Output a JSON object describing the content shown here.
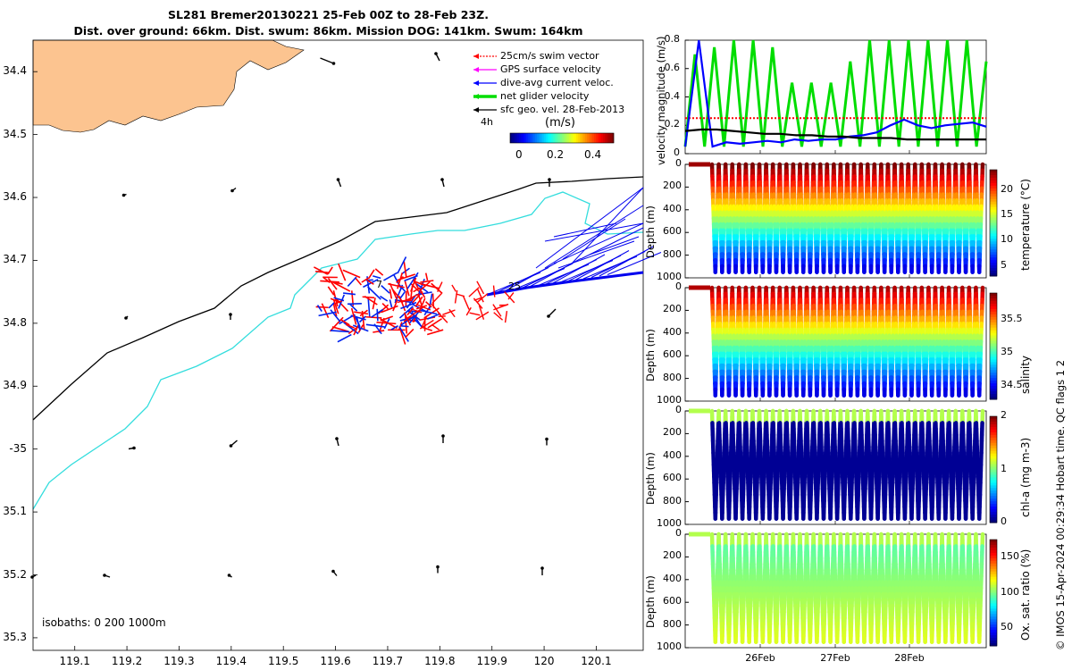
{
  "title": {
    "line1": "SL281 Bremer20130221 25-Feb 00Z to 28-Feb 23Z.",
    "line2": "Dist. over ground: 66km. Dist. swum: 86km. Mission DOG: 141km. Swum: 164km"
  },
  "map": {
    "lon_ticks": [
      "119.1",
      "119.2",
      "119.3",
      "119.4",
      "119.5",
      "119.6",
      "119.7",
      "119.8",
      "119.9",
      "120",
      "120.1"
    ],
    "lat_ticks": [
      "34.4",
      "34.5",
      "34.6",
      "34.7",
      "34.8",
      "34.9",
      "-35",
      "35.1",
      "35.2",
      "35.3"
    ],
    "legend": [
      {
        "label": "25cm/s swim vector",
        "color": "#ff0000"
      },
      {
        "label": "GPS surface velocity",
        "color": "#ff00ff"
      },
      {
        "label": "dive-avg current veloc.",
        "color": "#0000ff"
      },
      {
        "label": "net glider velocity",
        "color": "#00dd00"
      },
      {
        "label": "sfc geo. vel. 28-Feb-2013",
        "color": "#000000"
      }
    ],
    "legend_time": "4h",
    "colorbar_unit": "(m/s)",
    "colorbar_ticks": [
      "0",
      "0.2",
      "0.4"
    ],
    "isobaths_label": "isobaths: 0   200  1000m",
    "annotations": [
      "7",
      "25"
    ]
  },
  "chart_data": [
    {
      "type": "line",
      "title": "",
      "xlabel": "",
      "ylabel": "velocity magnitude (m/s)",
      "ylim": [
        0,
        0.8
      ],
      "yticks": [
        "0",
        "0.2",
        "0.4",
        "0.6",
        "0.8"
      ],
      "series": [
        {
          "name": "net glider velocity",
          "color": "#00dd00",
          "values": [
            0.05,
            0.7,
            0.05,
            0.75,
            0.05,
            0.8,
            0.05,
            0.8,
            0.05,
            0.75,
            0.05,
            0.5,
            0.05,
            0.5,
            0.05,
            0.5,
            0.05,
            0.65,
            0.05,
            0.8,
            0.05,
            0.8,
            0.05,
            0.8,
            0.05,
            0.8,
            0.05,
            0.8,
            0.05,
            0.8,
            0.05,
            0.65
          ]
        },
        {
          "name": "25cm/s swim vector",
          "color": "#ff0000",
          "values": [
            0.25,
            0.25,
            0.25,
            0.25,
            0.25,
            0.25,
            0.25,
            0.25,
            0.25,
            0.25,
            0.25,
            0.25,
            0.25,
            0.25,
            0.25,
            0.25,
            0.25,
            0.25,
            0.25,
            0.25
          ]
        },
        {
          "name": "dive-avg current veloc.",
          "color": "#0000ff",
          "values": [
            0.05,
            0.8,
            0.05,
            0.08,
            0.07,
            0.08,
            0.09,
            0.08,
            0.1,
            0.09,
            0.1,
            0.1,
            0.12,
            0.13,
            0.15,
            0.2,
            0.24,
            0.2,
            0.18,
            0.2,
            0.21,
            0.22,
            0.19
          ]
        },
        {
          "name": "sfc geo. vel.",
          "color": "#000000",
          "values": [
            0.16,
            0.17,
            0.17,
            0.16,
            0.15,
            0.14,
            0.14,
            0.13,
            0.13,
            0.12,
            0.12,
            0.11,
            0.11,
            0.11,
            0.1,
            0.1,
            0.1,
            0.1,
            0.1,
            0.1
          ]
        }
      ]
    },
    {
      "type": "scatter",
      "variable": "temperature (°C)",
      "ylabel": "Depth (m)",
      "yticks": [
        "0",
        "200",
        "400",
        "600",
        "800",
        "1000"
      ],
      "colorbar_ticks": [
        "5",
        "10",
        "15",
        "20"
      ],
      "clim": [
        3,
        24
      ],
      "profile_count": 40,
      "max_depth": 950
    },
    {
      "type": "scatter",
      "variable": "salinity",
      "ylabel": "Depth (m)",
      "yticks": [
        "0",
        "200",
        "400",
        "600",
        "800",
        "1000"
      ],
      "colorbar_ticks": [
        "34.5",
        "35",
        "35.5"
      ],
      "clim": [
        34.3,
        35.9
      ],
      "profile_count": 40,
      "max_depth": 950
    },
    {
      "type": "scatter",
      "variable": "chl-a (mg m-3)",
      "ylabel": "Depth (m)",
      "yticks": [
        "0",
        "200",
        "400",
        "600",
        "800",
        "1000"
      ],
      "colorbar_ticks": [
        "0",
        "1",
        "2"
      ],
      "clim": [
        0,
        2
      ],
      "profile_count": 40,
      "max_depth": 950
    },
    {
      "type": "scatter",
      "variable": "Ox. sat. ratio (%)",
      "ylabel": "Depth (m)",
      "yticks": [
        "0",
        "200",
        "400",
        "600",
        "800",
        "1000"
      ],
      "colorbar_ticks": [
        "50",
        "100",
        "150"
      ],
      "clim": [
        25,
        175
      ],
      "profile_count": 40,
      "max_depth": 950
    }
  ],
  "time_axis": {
    "ticks": [
      "26Feb",
      "27Feb",
      "28Feb"
    ]
  },
  "footer": "© IMOS 15-Apr-2024 00:29:34 Hobart time. QC flags 1  2"
}
